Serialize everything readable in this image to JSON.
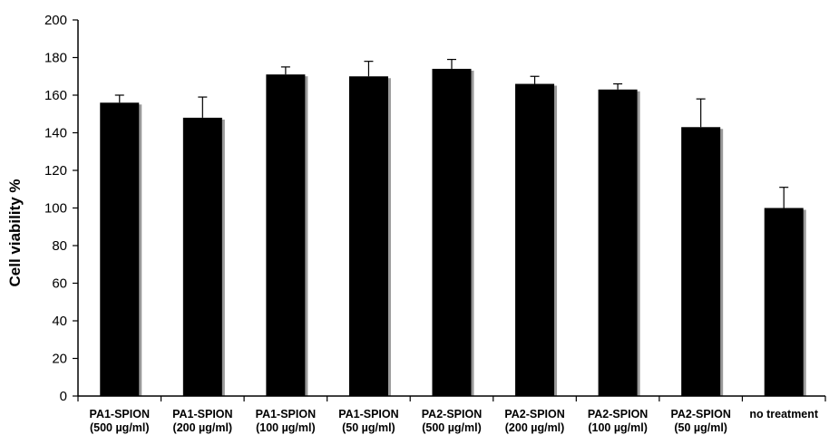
{
  "chart_data": {
    "type": "bar",
    "title": "",
    "xlabel": "",
    "ylabel": "Cell viability  %",
    "ylim": [
      0,
      200
    ],
    "yticks": [
      0,
      20,
      40,
      60,
      80,
      100,
      120,
      140,
      160,
      180,
      200
    ],
    "grid": false,
    "legend": "none",
    "bar_color": "#000000",
    "bar_shadow_color": "#9a9a9a",
    "categories": [
      {
        "line1": "PA1-SPION",
        "line2": "(500 µg/ml)"
      },
      {
        "line1": "PA1-SPION",
        "line2": "(200 µg/ml)"
      },
      {
        "line1": "PA1-SPION",
        "line2": "(100 µg/ml)"
      },
      {
        "line1": "PA1-SPION",
        "line2": "(50 µg/ml)"
      },
      {
        "line1": "PA2-SPION",
        "line2": "(500 µg/ml)"
      },
      {
        "line1": "PA2-SPION",
        "line2": "(200 µg/ml)"
      },
      {
        "line1": "PA2-SPION",
        "line2": "(100 µg/ml)"
      },
      {
        "line1": "PA2-SPION",
        "line2": "(50 µg/ml)"
      },
      {
        "line1": "no treatment",
        "line2": ""
      }
    ],
    "values": [
      156,
      148,
      171,
      170,
      174,
      166,
      163,
      143,
      100
    ],
    "errors": [
      4,
      11,
      4,
      8,
      5,
      4,
      3,
      15,
      11
    ]
  }
}
